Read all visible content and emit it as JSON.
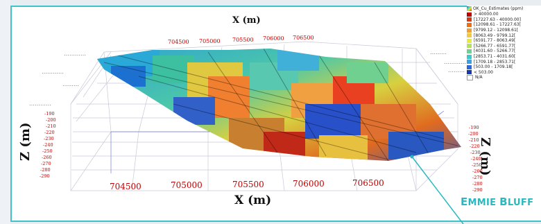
{
  "top_axis_label": "X (m)",
  "bottom_axis_label": "X (m)",
  "z_axis_label": "Z (m)",
  "top_x_ticks": [
    "704500",
    "705000",
    "705500",
    "706000",
    "706500"
  ],
  "bottom_x_ticks": [
    "704500",
    "705000",
    "705500",
    "706000",
    "706500"
  ],
  "left_z_ticks": [
    "-190",
    "-200",
    "-210",
    "-220",
    "-230",
    "-240",
    "-250",
    "-260",
    "-270",
    "-280",
    "-290"
  ],
  "right_z_ticks": [
    "-190",
    "-200",
    "-210",
    "-220",
    "-230",
    "-240",
    "-250",
    "-260",
    "-270",
    "-280",
    "-290"
  ],
  "legend": {
    "title": "OK_Cu_Estimates (ppm)",
    "items": [
      {
        "label": "> 40000.00",
        "color": "#c00000"
      },
      {
        "label": "[17227.63 - 40000.00]",
        "color": "#d63a10"
      },
      {
        "label": "[12098.61 - 17227.63[",
        "color": "#e87018"
      },
      {
        "label": "[9799.12 - 12098.61[",
        "color": "#f0a030"
      },
      {
        "label": "[8063.49 - 9799.12[",
        "color": "#f2c840"
      },
      {
        "label": "[6591.77 - 8063.49[",
        "color": "#e8e848"
      },
      {
        "label": "[5266.77 - 6591.77[",
        "color": "#b8e060"
      },
      {
        "label": "[4031.60 - 5266.77[",
        "color": "#70d090"
      },
      {
        "label": "[2853.71 - 4031.60[",
        "color": "#40c8c8"
      },
      {
        "label": "[1709.18 - 2853.71[",
        "color": "#3aa0e0"
      },
      {
        "label": "[503.00 - 1709.18[",
        "color": "#2a68d8"
      },
      {
        "label": "< 503.00",
        "color": "#1838b0"
      },
      {
        "label": "N/A",
        "color": "#ffffff"
      }
    ]
  },
  "site_name": {
    "first_initial": "E",
    "first_rest": "MMIE",
    "second_initial": "B",
    "second_rest": "LUFF"
  }
}
